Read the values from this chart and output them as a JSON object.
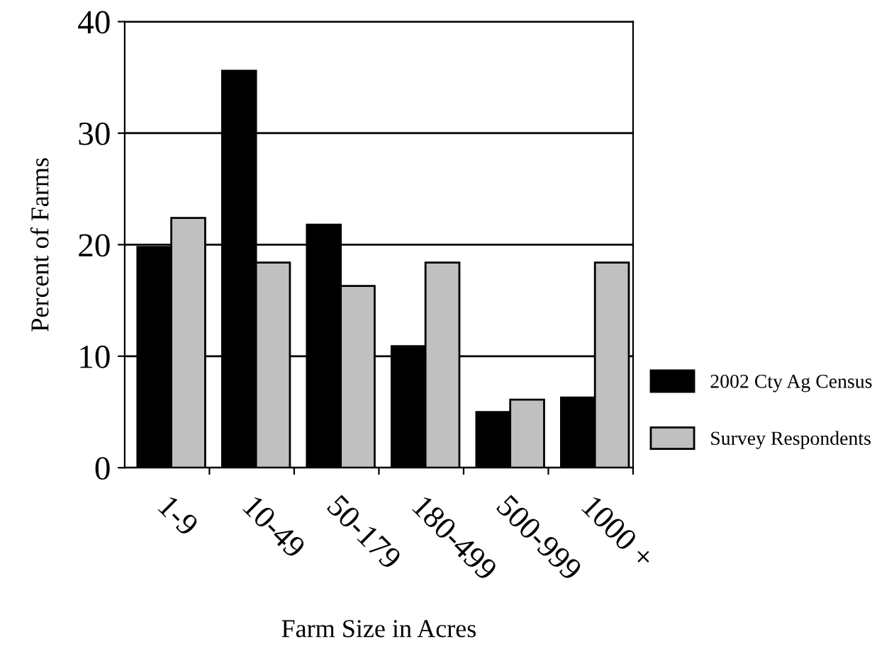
{
  "chart_data": {
    "type": "bar",
    "xlabel": "Farm Size in Acres",
    "ylabel": "Percent of Farms",
    "categories": [
      "1-9",
      "10-49",
      "50-179",
      "180-499",
      "500-999",
      "1000 +"
    ],
    "series": [
      {
        "name": "2002 Cty Ag Census",
        "color": "#000000",
        "values": [
          19.8,
          35.6,
          21.8,
          10.9,
          5.0,
          6.3
        ]
      },
      {
        "name": "Survey Respondents",
        "color": "#c0c0c0",
        "values": [
          22.4,
          18.4,
          16.3,
          18.4,
          6.1,
          18.4
        ]
      }
    ],
    "ylim": [
      0,
      40
    ],
    "yticks": [
      0,
      10,
      20,
      30,
      40
    ],
    "grid": "y",
    "legend": "right"
  }
}
